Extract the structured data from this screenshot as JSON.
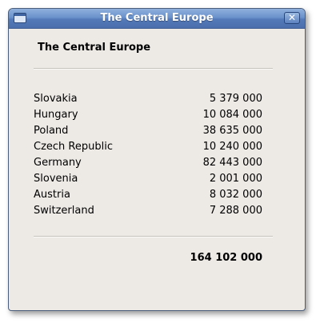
{
  "window": {
    "title": "The Central Europe",
    "close_label": "✕"
  },
  "content": {
    "heading": "The Central Europe",
    "rows": [
      {
        "country": "Slovakia",
        "population": "5 379 000"
      },
      {
        "country": "Hungary",
        "population": "10 084 000"
      },
      {
        "country": "Poland",
        "population": "38 635 000"
      },
      {
        "country": "Czech Republic",
        "population": "10 240 000"
      },
      {
        "country": "Germany",
        "population": "82 443 000"
      },
      {
        "country": "Slovenia",
        "population": "2 001 000"
      },
      {
        "country": "Austria",
        "population": "8 032 000"
      },
      {
        "country": "Switzerland",
        "population": "7 288 000"
      }
    ],
    "total": "164 102 000"
  },
  "icons": {
    "window_icon": "window-icon",
    "close": "close-icon"
  },
  "colors": {
    "titlebar": "#5479b8",
    "window_background": "#edeae6"
  }
}
